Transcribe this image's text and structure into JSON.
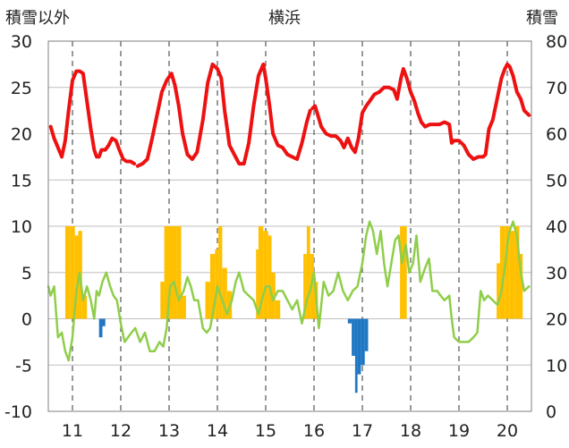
{
  "chart_data": {
    "type": "bar",
    "title": "横浜",
    "left_axis_label": "積雪以外",
    "right_axis_label": "積雪",
    "left_ylim": [
      -10,
      30
    ],
    "left_yticks": [
      "-10",
      "-5",
      "0",
      "5",
      "10",
      "15",
      "20",
      "25",
      "30"
    ],
    "right_ylim": [
      0,
      80
    ],
    "right_yticks": [
      "0",
      "10",
      "20",
      "30",
      "40",
      "50",
      "60",
      "70",
      "80"
    ],
    "xlim": [
      10.5,
      20.5
    ],
    "x_tick_labels": [
      "11",
      "12",
      "13",
      "14",
      "15",
      "16",
      "17",
      "18",
      "19",
      "20"
    ],
    "grid": "vertical dashed at each year, horizontal solid",
    "colors": {
      "red_line": "#ee1111",
      "green_line": "#8fce4a",
      "orange_bars": "#ffc000",
      "blue_bars": "#1f77c4",
      "grid": "#bfbfbf",
      "vgrid": "#555555"
    },
    "series": [
      {
        "color": "red",
        "axis": "right",
        "type": "line",
        "x": [
          10.55,
          10.62,
          10.7,
          10.78,
          10.85,
          10.92,
          11.0,
          11.08,
          11.15,
          11.22,
          11.3,
          11.38,
          11.45,
          11.5,
          11.55,
          11.6,
          11.68,
          11.75,
          11.82,
          11.9,
          11.97,
          12.05,
          12.12,
          12.2,
          12.28,
          null,
          12.35,
          12.45,
          12.55,
          12.65,
          12.75,
          12.85,
          12.95,
          13.05,
          13.12,
          13.2,
          13.28,
          13.38,
          13.48,
          13.58,
          13.7,
          13.8,
          13.9,
          14.0,
          14.08,
          14.15,
          14.25,
          14.35,
          14.45,
          14.55,
          14.65,
          14.75,
          14.85,
          14.95,
          15.0,
          15.08,
          15.15,
          15.25,
          15.35,
          15.45,
          15.55,
          15.65,
          15.75,
          15.85,
          15.92,
          null,
          15.97,
          16.02,
          16.08,
          16.15,
          16.25,
          16.35,
          16.45,
          16.55,
          16.62,
          16.7,
          16.78,
          16.85,
          16.92,
          17.0,
          17.08,
          17.15,
          17.25,
          17.35,
          17.45,
          17.55,
          17.65,
          17.72,
          17.8,
          17.85,
          17.92,
          18.0,
          18.08,
          18.15,
          18.22,
          18.3,
          18.4,
          18.5,
          18.6,
          18.7,
          18.8,
          18.85,
          18.9,
          19.0,
          19.1,
          19.2,
          19.3,
          19.4,
          19.5,
          19.55,
          19.62,
          19.7,
          19.8,
          19.88,
          19.95,
          20.0,
          20.05,
          20.12,
          20.2,
          20.28,
          20.35,
          20.45
        ],
        "y": [
          61.5,
          59,
          57,
          55,
          58.5,
          65,
          71.5,
          73.5,
          73.5,
          73,
          67,
          61,
          56.5,
          55,
          55,
          56.5,
          56.5,
          57.5,
          59,
          58.5,
          56.5,
          54.5,
          54,
          54,
          53.5,
          null,
          53,
          53.5,
          54.5,
          59,
          64,
          69,
          71.5,
          73,
          70.5,
          66,
          60,
          55.5,
          54.5,
          56,
          63,
          71,
          75,
          74,
          72,
          65,
          57.5,
          55.5,
          53.5,
          53.5,
          58,
          66,
          72.5,
          75,
          72,
          66,
          60,
          57.5,
          57,
          55.5,
          55,
          54.5,
          58,
          62.5,
          65,
          null,
          65.5,
          66,
          64,
          61.5,
          60,
          59.5,
          59.5,
          58.5,
          57,
          59,
          57,
          56,
          59,
          64.5,
          66,
          67,
          68.5,
          69,
          70,
          70,
          69.5,
          67.5,
          72,
          74,
          72,
          69,
          67,
          64.5,
          62.5,
          61.5,
          62,
          62,
          62,
          62.5,
          62,
          58,
          58.5,
          58.5,
          57.5,
          55.5,
          54.5,
          55,
          55,
          55.5,
          61,
          63,
          68,
          72,
          74,
          75,
          74.5,
          72.5,
          69,
          67.5,
          65,
          64
        ]
      },
      {
        "color": "green",
        "axis": "left",
        "type": "line",
        "x": [
          10.5,
          10.55,
          10.62,
          10.7,
          10.78,
          10.85,
          10.92,
          11.0,
          11.08,
          11.15,
          11.22,
          11.3,
          11.38,
          11.45,
          11.5,
          11.55,
          11.62,
          11.7,
          11.78,
          11.85,
          11.92,
          12.0,
          12.08,
          12.15,
          12.22,
          12.3,
          12.4,
          12.5,
          12.6,
          12.7,
          12.8,
          12.88,
          12.95,
          13.02,
          13.1,
          13.2,
          13.3,
          13.38,
          13.45,
          13.52,
          13.6,
          13.7,
          13.78,
          13.85,
          13.92,
          14.0,
          14.1,
          14.2,
          14.3,
          14.38,
          14.45,
          14.55,
          14.65,
          14.75,
          14.85,
          14.92,
          15.0,
          15.08,
          15.15,
          15.25,
          15.35,
          15.45,
          15.55,
          15.65,
          15.75,
          15.85,
          15.92,
          16.0,
          16.1,
          16.2,
          16.3,
          16.4,
          16.5,
          16.6,
          16.7,
          16.8,
          16.9,
          17.0,
          17.08,
          17.15,
          17.22,
          17.3,
          17.38,
          17.45,
          17.52,
          17.6,
          17.68,
          17.75,
          17.82,
          17.9,
          17.97,
          18.05,
          18.12,
          18.2,
          18.3,
          18.38,
          18.45,
          18.55,
          18.62,
          18.7,
          18.8,
          18.85,
          18.9,
          19.0,
          19.1,
          19.2,
          19.3,
          19.38,
          19.45,
          19.52,
          19.6,
          19.7,
          19.8,
          19.88,
          19.95,
          20.0,
          20.05,
          20.12,
          20.2,
          20.28,
          20.35,
          20.45
        ],
        "y": [
          3.5,
          2.5,
          3.5,
          -2,
          -1.5,
          -3.5,
          -4.5,
          -2,
          3,
          5,
          2,
          3.5,
          2,
          0,
          3,
          2.5,
          4,
          5,
          3.5,
          2.5,
          2,
          -0.5,
          -2.5,
          -2,
          -1.5,
          -1,
          -2.5,
          -1.5,
          -3.5,
          -3.5,
          -2.5,
          -3,
          -1,
          3.5,
          4,
          2,
          3,
          4.5,
          3.5,
          2,
          2,
          -1,
          -1.5,
          -1,
          1,
          3.5,
          2,
          0.5,
          2,
          4,
          5,
          3,
          2.5,
          2,
          0.5,
          2,
          3.5,
          3.5,
          2,
          3,
          3,
          2,
          1,
          2,
          -0.5,
          2,
          3,
          5,
          -1,
          4,
          2.5,
          3,
          5,
          3,
          2,
          3,
          3.5,
          6,
          9,
          10.5,
          9.5,
          7,
          9.5,
          6,
          3.5,
          6,
          8.5,
          9,
          6,
          8,
          5,
          6,
          9,
          4,
          5.5,
          6.5,
          3,
          3,
          2.5,
          2,
          2.5,
          0,
          -2,
          -2.5,
          -2.5,
          -2.5,
          -2,
          -1.5,
          3,
          2,
          2.5,
          2,
          1.5,
          3,
          5.5,
          8,
          9.5,
          10.5,
          9,
          5,
          3,
          3.5
        ]
      },
      {
        "color": "orange",
        "axis": "left",
        "type": "bar",
        "bars": [
          [
            10.85,
            10.95,
            10
          ],
          [
            10.95,
            11.05,
            10
          ],
          [
            11.05,
            11.12,
            9
          ],
          [
            11.12,
            11.2,
            9.5
          ],
          [
            11.2,
            11.3,
            2.5
          ],
          [
            12.82,
            12.9,
            4
          ],
          [
            12.9,
            13.15,
            10
          ],
          [
            13.15,
            13.25,
            10
          ],
          [
            13.25,
            13.35,
            2.5
          ],
          [
            13.75,
            13.85,
            4
          ],
          [
            13.85,
            13.95,
            7
          ],
          [
            13.95,
            14.02,
            7.5
          ],
          [
            14.02,
            14.1,
            10
          ],
          [
            14.1,
            14.2,
            5.5
          ],
          [
            14.2,
            14.3,
            3
          ],
          [
            14.8,
            14.85,
            7.5
          ],
          [
            14.85,
            14.95,
            10
          ],
          [
            14.95,
            15.05,
            9.5
          ],
          [
            15.05,
            15.12,
            9
          ],
          [
            15.12,
            15.2,
            5
          ],
          [
            15.2,
            15.3,
            2
          ],
          [
            15.78,
            15.85,
            7
          ],
          [
            15.85,
            15.92,
            10
          ],
          [
            15.92,
            16.0,
            7
          ],
          [
            16.0,
            16.08,
            4
          ],
          [
            17.78,
            17.92,
            10
          ],
          [
            19.78,
            19.85,
            6
          ],
          [
            19.85,
            19.95,
            10
          ],
          [
            19.95,
            20.05,
            10
          ],
          [
            20.05,
            20.15,
            9.5
          ],
          [
            20.15,
            20.25,
            10
          ],
          [
            20.25,
            20.32,
            7
          ]
        ]
      },
      {
        "color": "blue",
        "axis": "left",
        "type": "bar",
        "bars": [
          [
            11.55,
            11.62,
            -2
          ],
          [
            11.62,
            11.68,
            -0.8
          ],
          [
            16.7,
            16.78,
            -0.5
          ],
          [
            16.78,
            16.85,
            -4
          ],
          [
            16.85,
            16.9,
            -8
          ],
          [
            16.9,
            16.97,
            -6
          ],
          [
            16.97,
            17.05,
            -5
          ],
          [
            17.05,
            17.12,
            -3.5
          ]
        ]
      }
    ]
  }
}
